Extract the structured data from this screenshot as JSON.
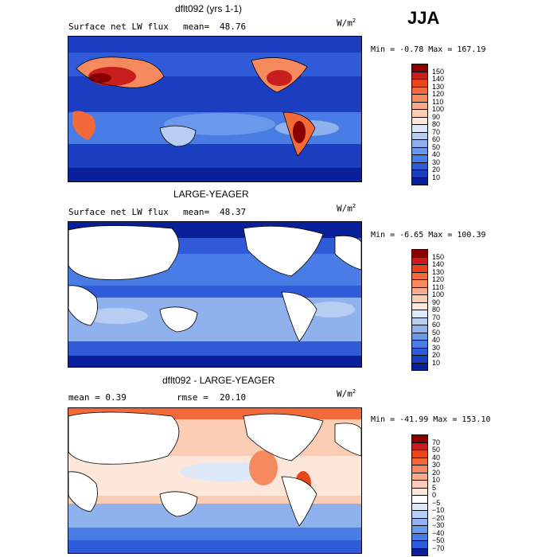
{
  "season": "JJA",
  "panels": [
    {
      "title": "dflt092 (yrs 1-1)",
      "left_label": "Surface net LW flux",
      "stat_label": "mean=",
      "stat_value": "48.76",
      "units_base": "W/m",
      "units_exp": "2",
      "minmax": "Min =  -0.78 Max = 167.19",
      "levels": [
        "150",
        "140",
        "130",
        "120",
        "110",
        "100",
        "90",
        "80",
        "70",
        "60",
        "50",
        "40",
        "30",
        "20",
        "10"
      ],
      "colors": [
        "#8b0000",
        "#c81e1e",
        "#e8461a",
        "#f26a3a",
        "#f58a5f",
        "#f8ab88",
        "#fbcdb4",
        "#fde6da",
        "#dde8f8",
        "#b8cdf2",
        "#8fb2ee",
        "#6a98ea",
        "#4a7ce6",
        "#2f5bd8",
        "#1b3ec0",
        "#0a1f9a"
      ]
    },
    {
      "title": "LARGE-YEAGER",
      "left_label": "Surface net LW flux",
      "stat_label": "mean=",
      "stat_value": "48.37",
      "units_base": "W/m",
      "units_exp": "2",
      "minmax": "Min =  -6.65 Max = 100.39",
      "levels": [
        "150",
        "140",
        "130",
        "120",
        "110",
        "100",
        "90",
        "80",
        "70",
        "60",
        "50",
        "40",
        "30",
        "20",
        "10"
      ],
      "colors": [
        "#8b0000",
        "#c81e1e",
        "#e8461a",
        "#f26a3a",
        "#f58a5f",
        "#f8ab88",
        "#fbcdb4",
        "#fde6da",
        "#dde8f8",
        "#b8cdf2",
        "#8fb2ee",
        "#6a98ea",
        "#4a7ce6",
        "#2f5bd8",
        "#1b3ec0",
        "#0a1f9a"
      ]
    },
    {
      "title": "dflt092 - LARGE-YEAGER",
      "left_label": "mean =    0.39",
      "stat_label": "rmse =",
      "stat_value": "20.10",
      "units_base": "W/m",
      "units_exp": "2",
      "minmax": "Min = -41.99 Max = 153.10",
      "levels": [
        "70",
        "50",
        "40",
        "30",
        "20",
        "10",
        "5",
        "0",
        "−5",
        "−10",
        "−20",
        "−30",
        "−40",
        "−50",
        "−70"
      ],
      "colors": [
        "#8b0000",
        "#c81e1e",
        "#e8461a",
        "#f26a3a",
        "#f58a5f",
        "#f8ab88",
        "#fbcdb4",
        "#fde6da",
        "#ffffff",
        "#dde8f8",
        "#b8cdf2",
        "#8fb2ee",
        "#6a98ea",
        "#4a7ce6",
        "#2f5bd8",
        "#0a1f9a"
      ]
    }
  ]
}
